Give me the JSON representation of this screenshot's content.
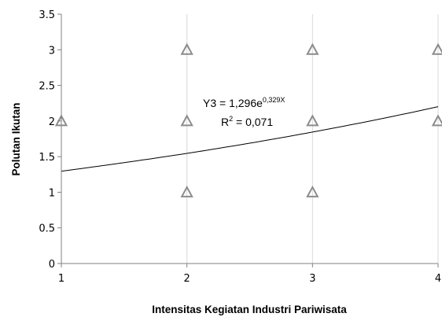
{
  "chart_data": {
    "type": "scatter",
    "title": "",
    "xlabel": "Intensitas Kegiatan Industri Pariwisata",
    "ylabel": "Polutan Ikutan",
    "xlim": [
      1,
      4
    ],
    "ylim": [
      0,
      3.5
    ],
    "x_ticks": [
      "1",
      "2",
      "3",
      "4"
    ],
    "y_ticks": [
      "0",
      "0.5",
      "1",
      "1.5",
      "2",
      "2.5",
      "3",
      "3.5"
    ],
    "grid": "vertical",
    "marker": "triangle-open",
    "marker_color": "#8c8c8c",
    "series": [
      {
        "x": [
          1,
          2,
          2,
          2,
          3,
          3,
          3,
          4,
          4
        ],
        "y": [
          2,
          3,
          2,
          1,
          3,
          2,
          1,
          3,
          2
        ]
      }
    ],
    "trendline": {
      "type": "exponential",
      "a": 1.296,
      "b": 0.329,
      "r2": 0.071,
      "equation_lhs": "Y3 = 1,296e",
      "equation_exp": "0,329X",
      "r2_lhs": "R",
      "r2_sup": "2",
      "r2_rhs": " = 0,071"
    }
  }
}
